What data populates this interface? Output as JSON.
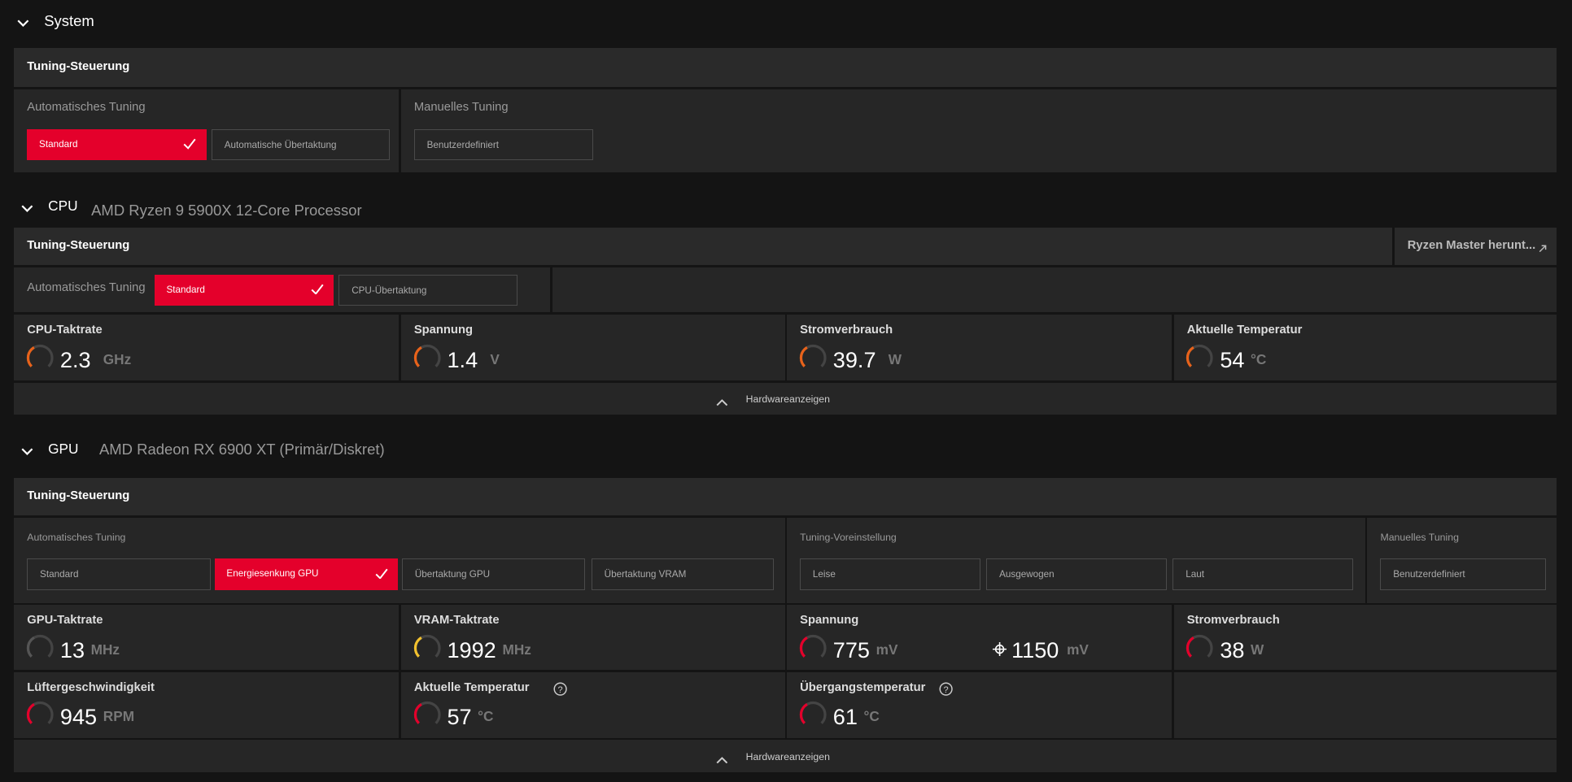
{
  "system": {
    "title": "System",
    "panel_title": "Tuning-Steuerung",
    "auto_label": "Automatisches Tuning",
    "auto_buttons": [
      "Standard",
      "Automatische Übertaktung"
    ],
    "auto_selected": 0,
    "manual_label": "Manuelles Tuning",
    "manual_buttons": [
      "Benutzerdefiniert"
    ]
  },
  "cpu": {
    "title": "CPU",
    "device": "AMD Ryzen 9 5900X 12-Core Processor",
    "panel_title": "Tuning-Steuerung",
    "link": "Ryzen Master herunt...",
    "auto_label": "Automatisches Tuning",
    "auto_buttons": [
      "Standard",
      "CPU-Übertaktung"
    ],
    "auto_selected": 0,
    "metrics": [
      {
        "label": "CPU-Taktrate",
        "value": 2.3,
        "unit": "GHz",
        "gauge_color": "#e8621a"
      },
      {
        "label": "Spannung",
        "value": 1.4,
        "unit": "V",
        "gauge_color": "#e8621a"
      },
      {
        "label": "Stromverbrauch",
        "value": 39.7,
        "unit": "W",
        "gauge_color": "#e8621a"
      },
      {
        "label": "Aktuelle Temperatur",
        "value": 54,
        "unit": "°C",
        "gauge_color": "#e8621a"
      }
    ],
    "footer": "Hardwareanzeigen"
  },
  "gpu": {
    "title": "GPU",
    "device": "AMD Radeon RX 6900 XT (Primär/Diskret)",
    "panel_title": "Tuning-Steuerung",
    "auto_label": "Automatisches Tuning",
    "auto_buttons": [
      "Standard",
      "Energiesenkung GPU",
      "Übertaktung GPU",
      "Übertaktung VRAM"
    ],
    "auto_selected": 1,
    "preset_label": "Tuning-Voreinstellung",
    "preset_buttons": [
      "Leise",
      "Ausgewogen",
      "Laut"
    ],
    "manual_label": "Manuelles Tuning",
    "manual_buttons": [
      "Benutzerdefiniert"
    ],
    "metrics": [
      {
        "label": "GPU-Taktrate",
        "value": 13,
        "unit": "MHz",
        "gauge_color": "#555555"
      },
      {
        "label": "VRAM-Taktrate",
        "value": 1992,
        "unit": "MHz",
        "gauge_color": "#f2c12e"
      },
      {
        "label": "Spannung",
        "value": 775,
        "unit": "mV",
        "target_value": 1150,
        "target_unit": "mV",
        "gauge_color": "#e4002b"
      },
      {
        "label": "Stromverbrauch",
        "value": 38,
        "unit": "W",
        "gauge_color": "#e4002b"
      },
      {
        "label": "Lüftergeschwindigkeit",
        "value": 945,
        "unit": "RPM",
        "gauge_color": "#e4002b"
      },
      {
        "label": "Aktuelle Temperatur",
        "value": 57,
        "unit": "°C",
        "gauge_color": "#e4002b",
        "help": true
      },
      {
        "label": "Übergangstemperatur",
        "value": 61,
        "unit": "°C",
        "gauge_color": "#e4002b",
        "help": true
      }
    ],
    "footer": "Hardwareanzeigen"
  }
}
